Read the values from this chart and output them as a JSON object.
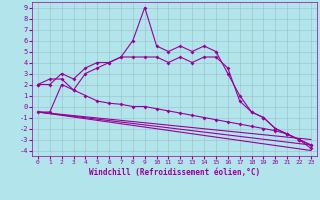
{
  "xlabel": "Windchill (Refroidissement éolien,°C)",
  "background_color": "#b2e4ec",
  "grid_color": "#9bbfc8",
  "line_color": "#990099",
  "xlim": [
    -0.5,
    23.5
  ],
  "ylim": [
    -4.5,
    9.5
  ],
  "xticks": [
    0,
    1,
    2,
    3,
    4,
    5,
    6,
    7,
    8,
    9,
    10,
    11,
    12,
    13,
    14,
    15,
    16,
    17,
    18,
    19,
    20,
    21,
    22,
    23
  ],
  "yticks": [
    -4,
    -3,
    -2,
    -1,
    0,
    1,
    2,
    3,
    4,
    5,
    6,
    7,
    8,
    9
  ],
  "line1_x": [
    0,
    1,
    2,
    3,
    4,
    5,
    6,
    7,
    8,
    9,
    10,
    11,
    12,
    13,
    14,
    15,
    16,
    17,
    18,
    19,
    20,
    21,
    22,
    23
  ],
  "line1_y": [
    2.0,
    2.0,
    3.0,
    2.5,
    3.5,
    4.0,
    4.0,
    4.5,
    6.0,
    9.0,
    5.5,
    5.0,
    5.5,
    5.0,
    5.5,
    5.0,
    3.0,
    1.0,
    -0.5,
    -1.0,
    -2.0,
    -2.5,
    -3.0,
    -3.5
  ],
  "line2_x": [
    0,
    1,
    2,
    3,
    4,
    5,
    6,
    7,
    8,
    9,
    10,
    11,
    12,
    13,
    14,
    15,
    16,
    17,
    18,
    19,
    20,
    21,
    22,
    23
  ],
  "line2_y": [
    2.0,
    2.5,
    2.5,
    1.5,
    3.0,
    3.5,
    4.0,
    4.5,
    4.5,
    4.5,
    4.5,
    4.0,
    4.5,
    4.0,
    4.5,
    4.5,
    3.5,
    0.5,
    -0.5,
    -1.0,
    -2.0,
    -2.5,
    -3.0,
    -3.5
  ],
  "line3_x": [
    0,
    1,
    2,
    3,
    4,
    5,
    6,
    7,
    8,
    9,
    10,
    11,
    12,
    13,
    14,
    15,
    16,
    17,
    18,
    19,
    20,
    21,
    22,
    23
  ],
  "line3_y": [
    -0.5,
    -0.5,
    2.0,
    1.5,
    1.0,
    0.5,
    0.3,
    0.2,
    0.0,
    0.0,
    -0.2,
    -0.4,
    -0.6,
    -0.8,
    -1.0,
    -1.2,
    -1.4,
    -1.6,
    -1.8,
    -2.0,
    -2.2,
    -2.5,
    -3.0,
    -3.8
  ],
  "line4_x": [
    0,
    23
  ],
  "line4_y": [
    -0.5,
    -4.0
  ],
  "line5_x": [
    0,
    23
  ],
  "line5_y": [
    -0.5,
    -3.5
  ],
  "line6_x": [
    0,
    23
  ],
  "line6_y": [
    -0.5,
    -3.0
  ]
}
